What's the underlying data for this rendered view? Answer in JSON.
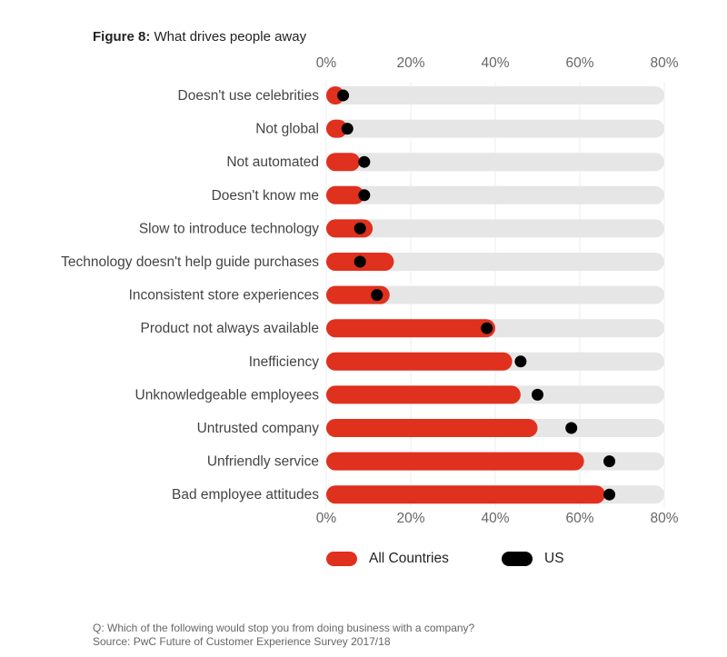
{
  "header": {
    "title_lead": "Figure 8:",
    "title_rest": "What drives people away"
  },
  "chart_data": {
    "type": "bar",
    "orientation": "horizontal",
    "categories": [
      "Doesn't use celebrities",
      "Not global",
      "Not automated",
      "Doesn't know me",
      "Slow to introduce technology",
      "Technology doesn't help guide purchases",
      "Inconsistent store experiences",
      "Product not always available",
      "Inefficiency",
      "Unknowledgeable employees",
      "Untrusted company",
      "Unfriendly service",
      "Bad employee attitudes"
    ],
    "series": [
      {
        "name": "All Countries",
        "values": [
          4,
          5,
          8,
          9,
          11,
          16,
          15,
          40,
          44,
          46,
          50,
          61,
          66
        ]
      },
      {
        "name": "US",
        "values": [
          4,
          5,
          9,
          9,
          8,
          8,
          12,
          38,
          46,
          50,
          58,
          67,
          67
        ]
      }
    ],
    "xlim": [
      0,
      80
    ],
    "xticks": [
      "0%",
      "20%",
      "40%",
      "60%",
      "80%"
    ],
    "grid": true,
    "legend_position": "bottom"
  },
  "colors": {
    "all_countries": "#e0301e",
    "us": "#000000",
    "track": "#e6e6e6",
    "grid": "#ececec"
  },
  "legend": {
    "all_countries_label": "All Countries",
    "us_label": "US"
  },
  "footnote": {
    "question": "Q: Which of the following would stop you from doing business with a company?",
    "source": "Source: PwC Future of Customer Experience Survey 2017/18"
  }
}
